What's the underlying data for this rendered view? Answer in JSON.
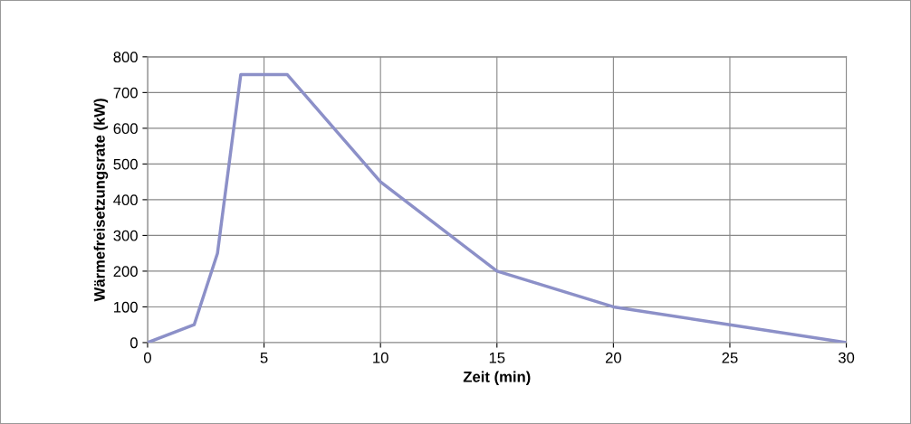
{
  "chart_data": {
    "type": "line",
    "xlabel": "Zeit (min)",
    "ylabel": "Wärmefreisetzungsrate (kW)",
    "x": [
      0,
      2,
      3,
      4,
      6,
      10,
      15,
      20,
      25,
      30
    ],
    "series": [
      {
        "color": "#8c90c8",
        "values": [
          0,
          50,
          250,
          750,
          750,
          450,
          200,
          100,
          50,
          0
        ]
      }
    ],
    "xlim": [
      0,
      30
    ],
    "xticks": [
      0,
      5,
      10,
      15,
      20,
      25,
      30
    ],
    "ylim": [
      0,
      800
    ],
    "yticks": [
      0,
      100,
      200,
      300,
      400,
      500,
      600,
      700,
      800
    ],
    "grid": true,
    "marker": "none",
    "line_style": "solid",
    "legend": false
  }
}
